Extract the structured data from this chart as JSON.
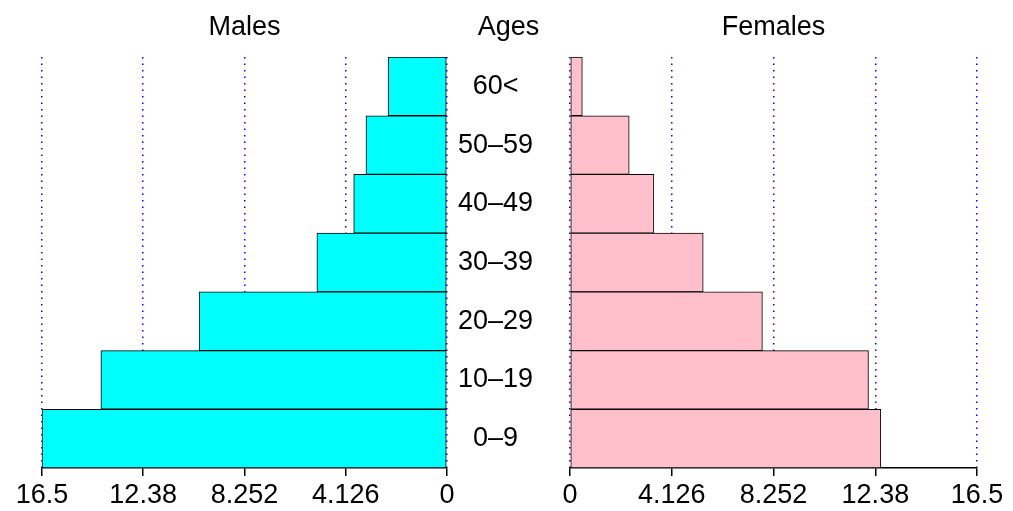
{
  "chart_data": [
    {
      "type": "bar",
      "orientation": "horizontal",
      "title": "Males",
      "ylabel": "Ages",
      "categories": [
        "60<",
        "50–59",
        "40–49",
        "30–39",
        "20–29",
        "10–19",
        "0–9"
      ],
      "color": "#00ffff",
      "values": [
        2.4,
        3.3,
        3.8,
        5.3,
        10.1,
        14.1,
        16.5
      ],
      "xlim": [
        16.5,
        0
      ],
      "xticks": [
        16.5,
        12.38,
        8.252,
        4.126,
        0
      ],
      "grid": "x"
    },
    {
      "type": "bar",
      "orientation": "horizontal",
      "title": "Females",
      "categories": [
        null,
        null,
        null,
        null,
        null,
        null,
        null
      ],
      "color": "#ffc0cb",
      "values": [
        0.5,
        2.4,
        3.4,
        5.4,
        7.8,
        12.1,
        12.6
      ],
      "xlim": [
        0,
        16.5
      ],
      "xticks": [
        0,
        4.126,
        8.252,
        12.38,
        16.5
      ],
      "grid": "x",
      "tick_labels": "x"
    }
  ]
}
